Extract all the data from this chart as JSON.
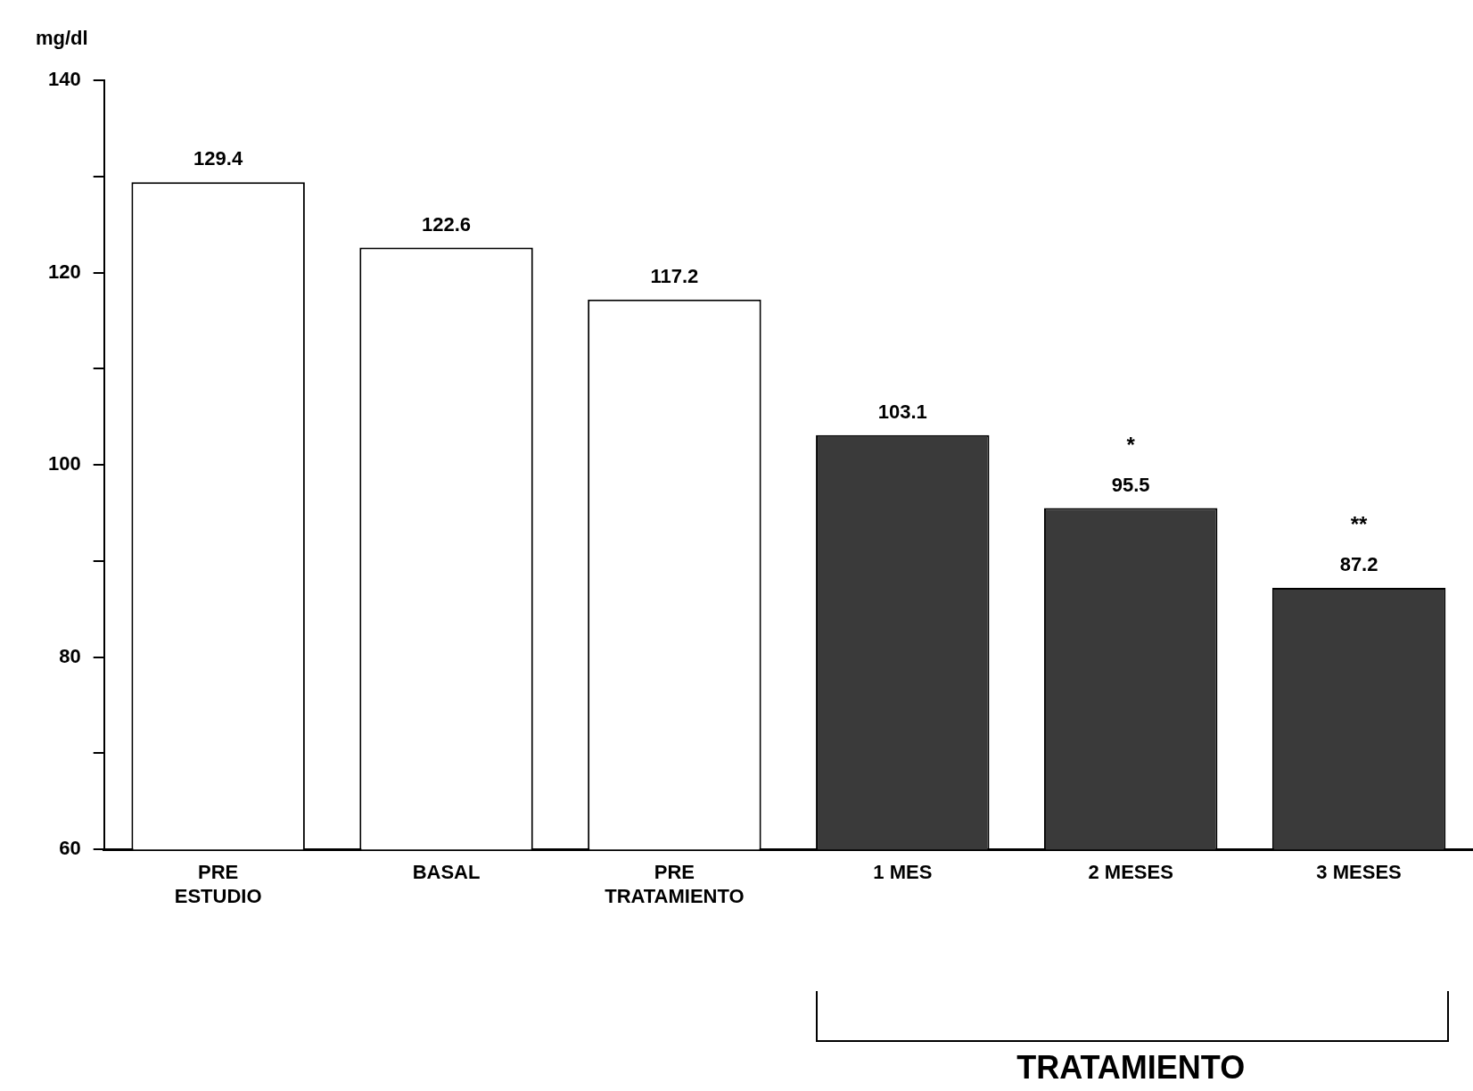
{
  "chart_data": {
    "type": "bar",
    "ylabel": "mg/dl",
    "categories": [
      "PRE\nESTUDIO",
      "BASAL",
      "PRE\nTRATAMIENTO",
      "1 MES",
      "2 MESES",
      "3 MESES"
    ],
    "values": [
      129.4,
      122.6,
      117.2,
      103.1,
      95.5,
      87.2
    ],
    "colors": [
      "#ffffff",
      "#ffffff",
      "#ffffff",
      "#3a3a3a",
      "#3a3a3a",
      "#3a3a3a"
    ],
    "ylim": [
      60,
      140
    ],
    "yticks": [
      60,
      {
        "value": 70,
        "label": null
      },
      80,
      {
        "value": 90,
        "label": null
      },
      100,
      {
        "value": 110,
        "label": null
      },
      120,
      {
        "value": 130,
        "label": null
      },
      140
    ],
    "data_labels": true,
    "grid": false,
    "legend": false,
    "annotations": [
      "*",
      "**",
      "TRATAMIENTO"
    ]
  }
}
